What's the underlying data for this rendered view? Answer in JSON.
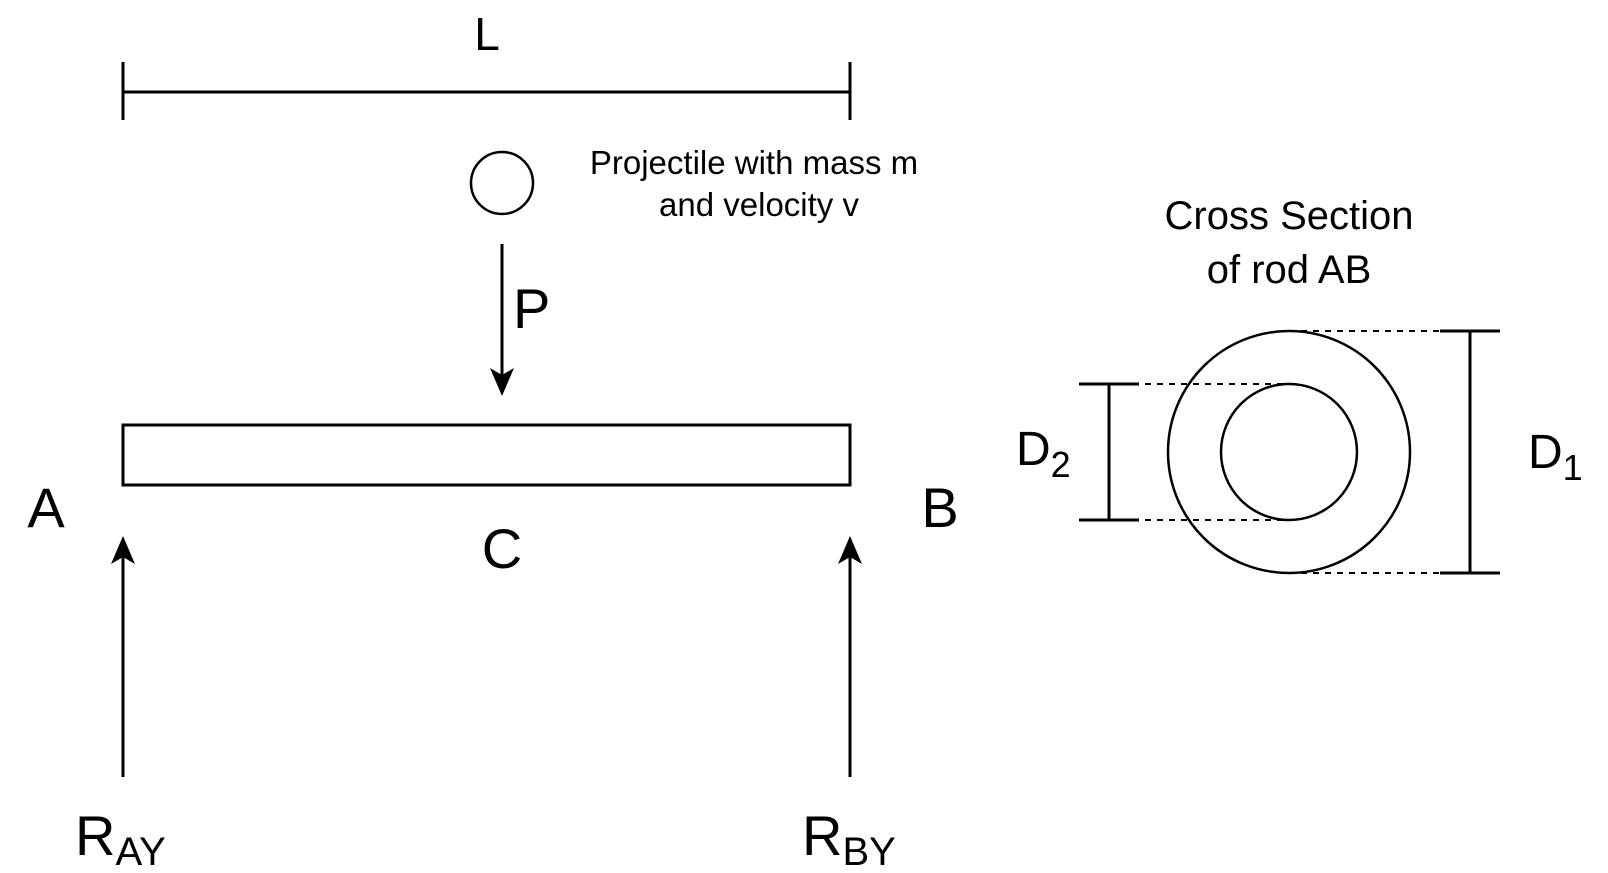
{
  "labels": {
    "length": "L",
    "load": "P",
    "end_a": "A",
    "end_b": "B",
    "midpoint": "C",
    "reaction_a_main": "R",
    "reaction_a_sub": "AY",
    "reaction_b_main": "R",
    "reaction_b_sub": "BY",
    "projectile_line1": "Projectile with mass m",
    "projectile_line2": "and velocity v",
    "cross_section_line1": "Cross Section",
    "cross_section_line2": "of rod AB",
    "inner_diameter_main": "D",
    "inner_diameter_sub": "2",
    "outer_diameter_main": "D",
    "outer_diameter_sub": "1"
  },
  "colors": {
    "stroke": "#000000",
    "background": "#ffffff"
  }
}
